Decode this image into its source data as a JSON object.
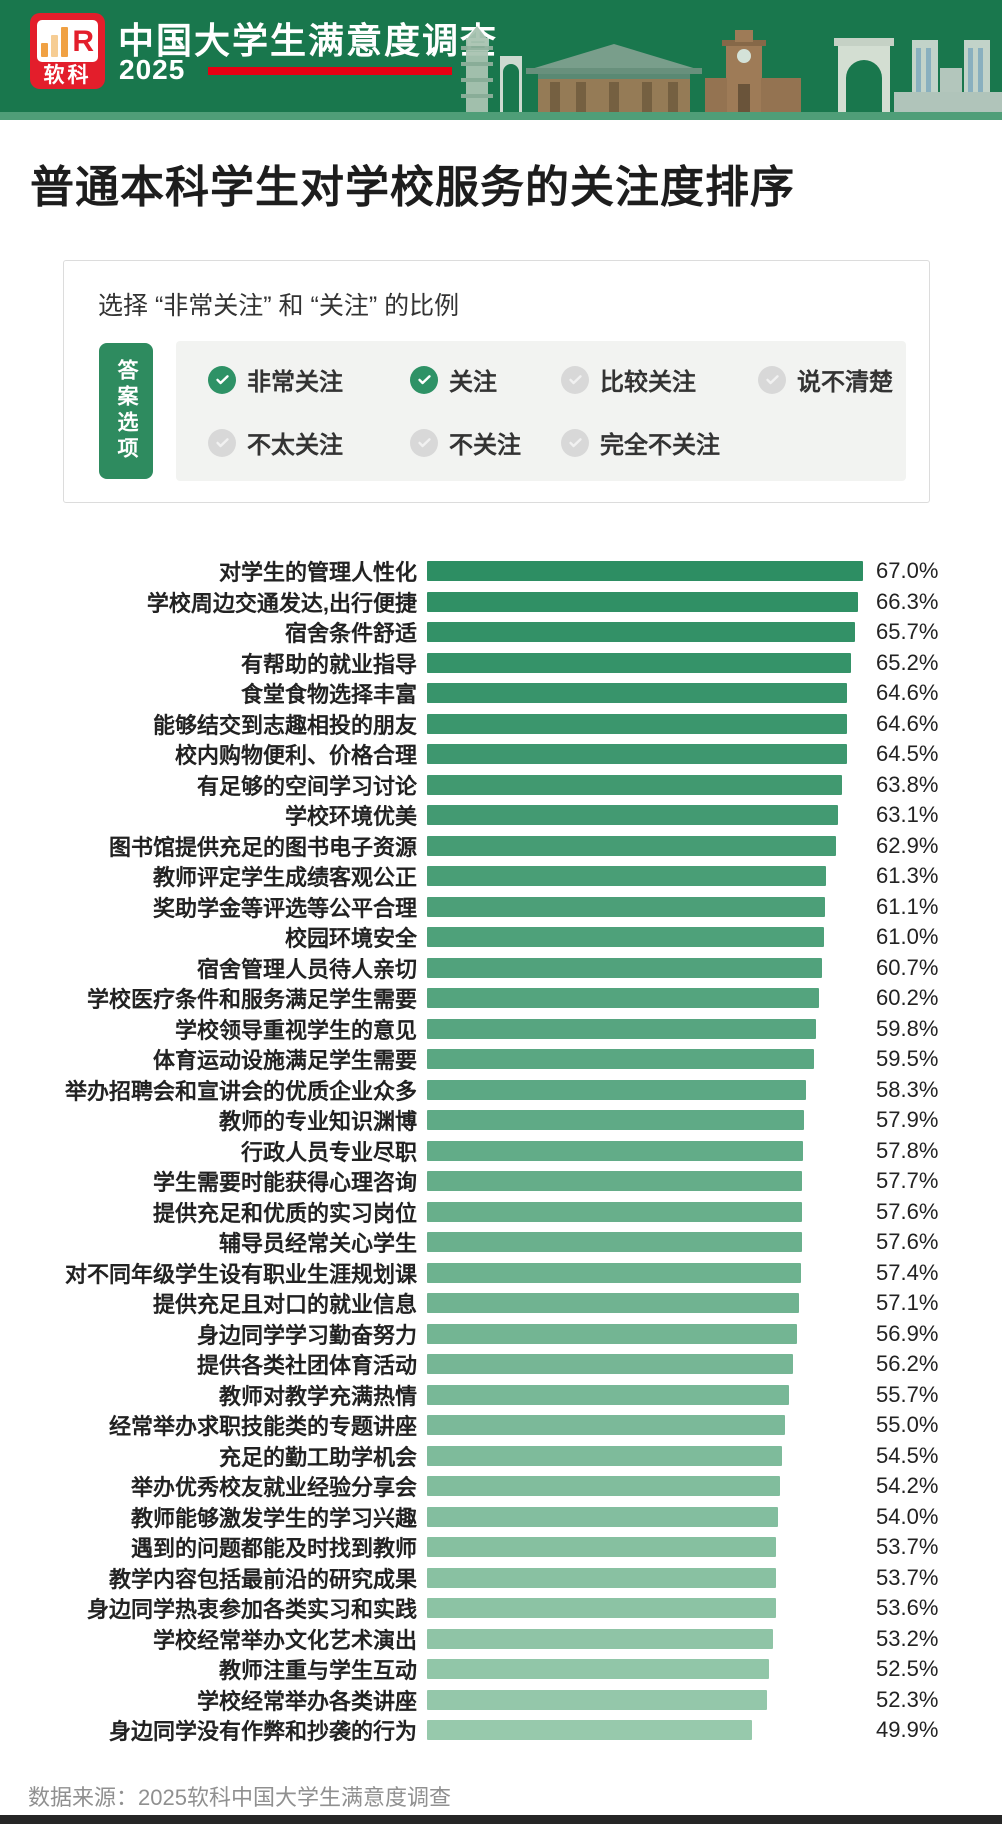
{
  "header": {
    "logo_text": "软科",
    "logo_letter": "R",
    "title": "中国大学生满意度调查",
    "year": "2025"
  },
  "page_title": "普通本科学生对学校服务的关注度排序",
  "filter_box": {
    "subtitle": "选择 “非常关注” 和 “关注” 的比例",
    "tab_label": "答案选项",
    "options": [
      {
        "label": "非常关注",
        "selected": true
      },
      {
        "label": "关注",
        "selected": true
      },
      {
        "label": "比较关注",
        "selected": false
      },
      {
        "label": "说不清楚",
        "selected": false
      },
      {
        "label": "不太关注",
        "selected": false
      },
      {
        "label": "不关注",
        "selected": false
      },
      {
        "label": "完全不关注",
        "selected": false
      }
    ]
  },
  "chart_data": {
    "type": "bar",
    "orientation": "horizontal",
    "title": "普通本科学生对学校服务的关注度排序",
    "subtitle": "选择“非常关注”和“关注”的比例",
    "value_suffix": "%",
    "xlim": [
      0,
      67
    ],
    "grid": false,
    "bar_color_top": "#2d8e63",
    "bar_color_bottom": "#97c9ac",
    "categories": [
      "对学生的管理人性化",
      "学校周边交通发达,出行便捷",
      "宿舍条件舒适",
      "有帮助的就业指导",
      "食堂食物选择丰富",
      "能够结交到志趣相投的朋友",
      "校内购物便利、价格合理",
      "有足够的空间学习讨论",
      "学校环境优美",
      "图书馆提供充足的图书电子资源",
      "教师评定学生成绩客观公正",
      "奖助学金等评选等公平合理",
      "校园环境安全",
      "宿舍管理人员待人亲切",
      "学校医疗条件和服务满足学生需要",
      "学校领导重视学生的意见",
      "体育运动设施满足学生需要",
      "举办招聘会和宣讲会的优质企业众多",
      "教师的专业知识渊博",
      "行政人员专业尽职",
      "学生需要时能获得心理咨询",
      "提供充足和优质的实习岗位",
      "辅导员经常关心学生",
      "对不同年级学生设有职业生涯规划课",
      "提供充足且对口的就业信息",
      "身边同学学习勤奋努力",
      "提供各类社团体育活动",
      "教师对教学充满热情",
      "经常举办求职技能类的专题讲座",
      "充足的勤工助学机会",
      "举办优秀校友就业经验分享会",
      "教师能够激发学生的学习兴趣",
      "遇到的问题都能及时找到教师",
      "教学内容包括最前沿的研究成果",
      "身边同学热衷参加各类实习和实践",
      "学校经常举办文化艺术演出",
      "教师注重与学生互动",
      "学校经常举办各类讲座",
      "身边同学没有作弊和抄袭的行为"
    ],
    "values": [
      67.0,
      66.3,
      65.7,
      65.2,
      64.6,
      64.6,
      64.5,
      63.8,
      63.1,
      62.9,
      61.3,
      61.1,
      61.0,
      60.7,
      60.2,
      59.8,
      59.5,
      58.3,
      57.9,
      57.8,
      57.7,
      57.6,
      57.6,
      57.4,
      57.1,
      56.9,
      56.2,
      55.7,
      55.0,
      54.5,
      54.2,
      54.0,
      53.7,
      53.7,
      53.6,
      53.2,
      52.5,
      52.3,
      49.9
    ]
  },
  "footer": {
    "source": "数据来源：2025软科中国大学生满意度调查"
  },
  "colors": {
    "header_green": "#19774d",
    "strip_green": "#4f9e78",
    "accent_red": "#e60012",
    "selected_check": "#2e9266",
    "unselected_check": "#d8d8d8",
    "logo_red": "#e31e2b",
    "logo_bar_orange": "#f0a143",
    "logo_bar_tan": "#f6cd94"
  }
}
